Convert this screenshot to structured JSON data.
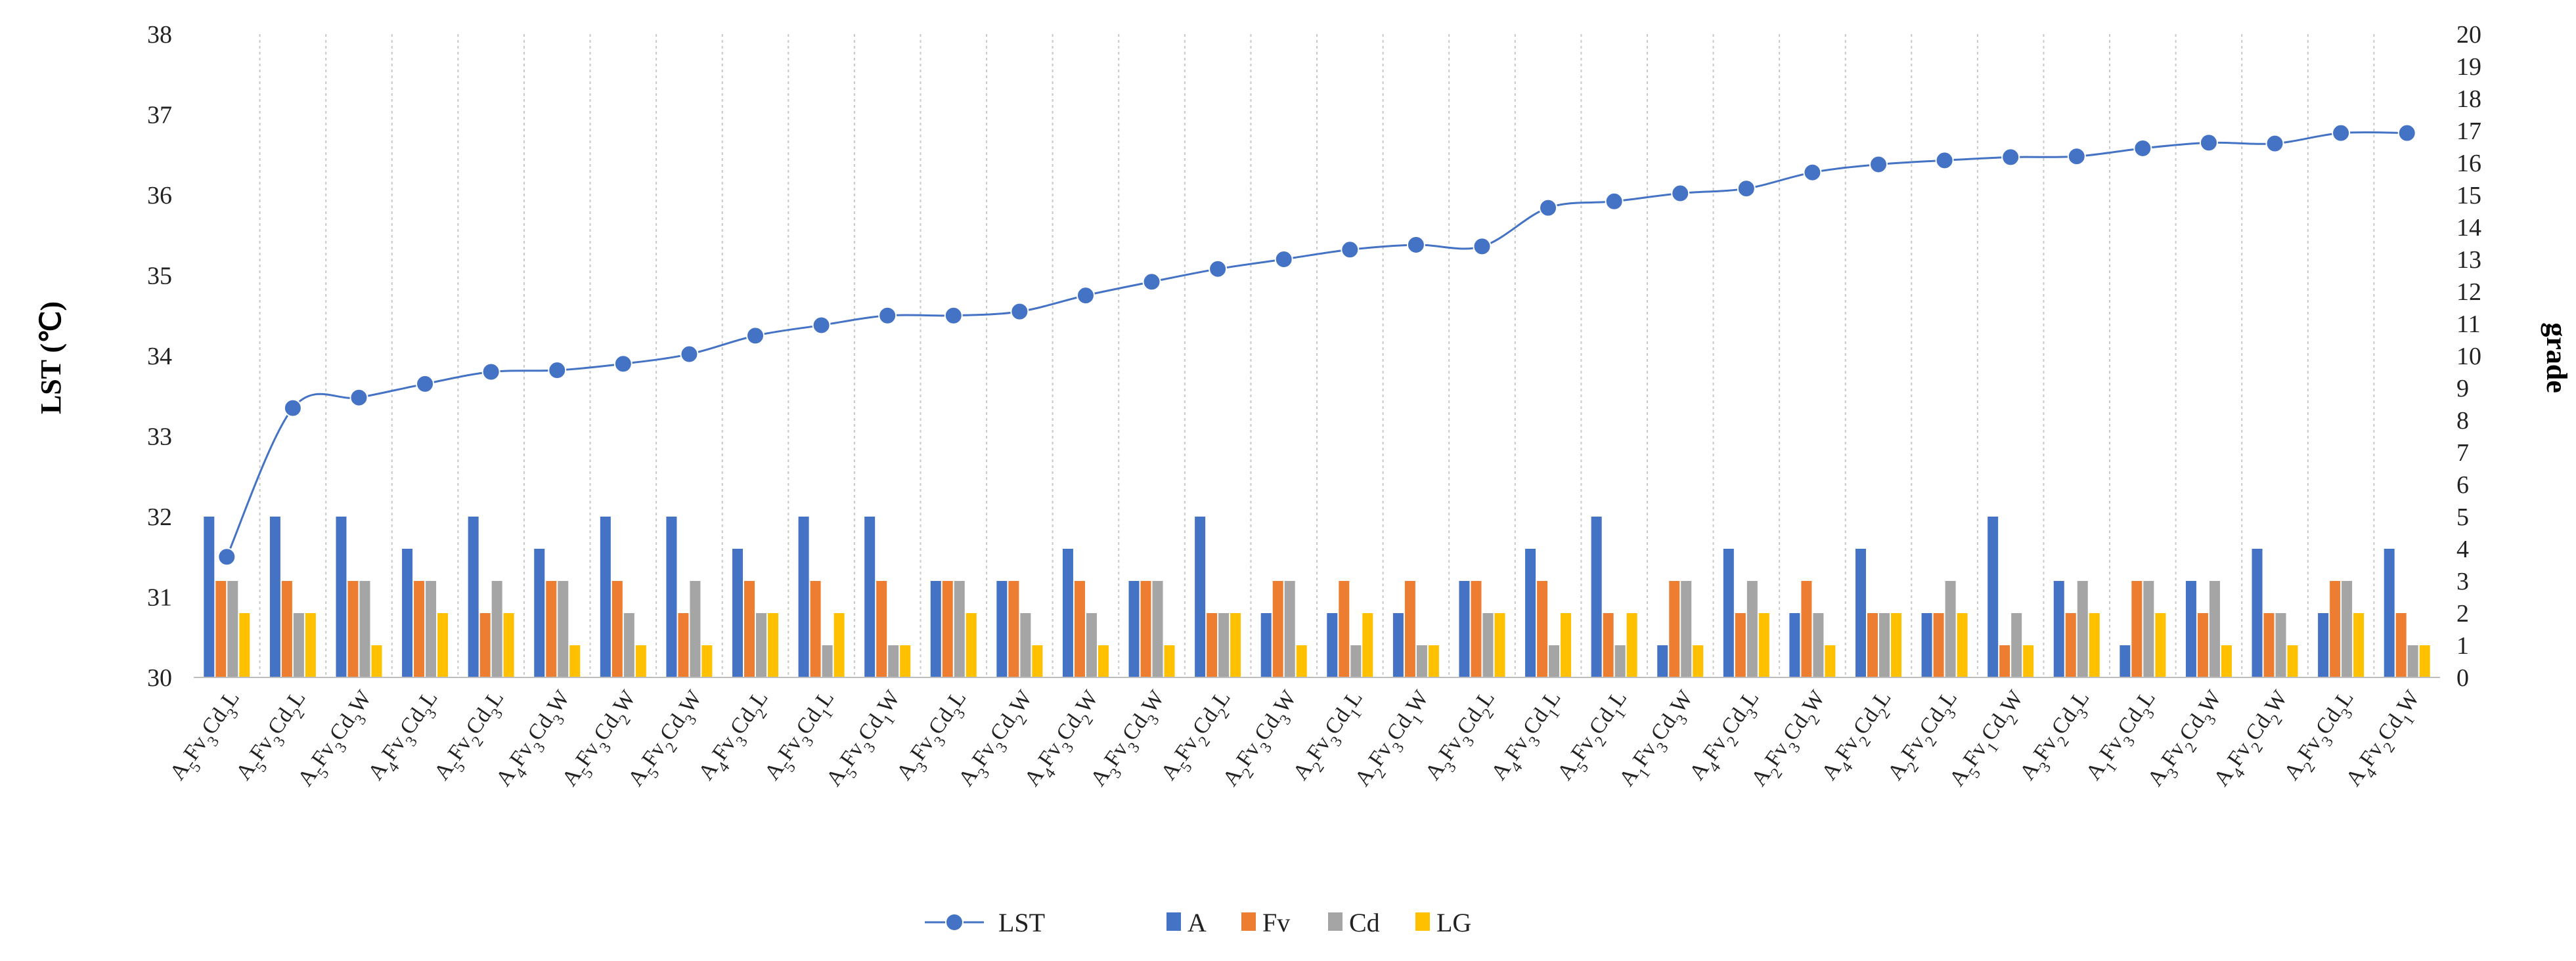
{
  "chart_data": {
    "type": "bar+line",
    "title": "",
    "ylabel_left": "LST (℃)",
    "ylabel_right": "grade",
    "ylim_left": [
      30,
      38
    ],
    "ylim_right": [
      0,
      20
    ],
    "yticks_left": [
      "30",
      "31",
      "32",
      "33",
      "34",
      "35",
      "36",
      "37",
      "38"
    ],
    "yticks_right": [
      "0",
      "1",
      "2",
      "3",
      "4",
      "5",
      "6",
      "7",
      "8",
      "9",
      "10",
      "11",
      "12",
      "13",
      "14",
      "15",
      "16",
      "17",
      "18",
      "19",
      "20"
    ],
    "categories": [
      "A5Fv3Cd3L",
      "A5Fv3Cd2L",
      "A5Fv3Cd3W",
      "A4Fv3Cd3L",
      "A5Fv2Cd3L",
      "A4Fv3Cd3W",
      "A5Fv3Cd2W",
      "A5Fv2Cd3W",
      "A4Fv3Cd2L",
      "A5Fv3Cd1L",
      "A5Fv3Cd1W",
      "A3Fv3Cd3L",
      "A3Fv3Cd2W",
      "A4Fv3Cd2W",
      "A3Fv3Cd3W",
      "A5Fv2Cd2L",
      "A2Fv3Cd3W",
      "A2Fv3Cd1L",
      "A2Fv3Cd1W",
      "A3Fv3Cd2L",
      "A4Fv3Cd1L",
      "A5Fv2Cd1L",
      "A1Fv3Cd3W",
      "A4Fv2Cd3L",
      "A2Fv3Cd2W",
      "A4Fv2Cd2L",
      "A2Fv2Cd3L",
      "A5Fv1Cd2W",
      "A3Fv2Cd3L",
      "A1Fv3Cd3L",
      "A3Fv2Cd3W",
      "A4Fv2Cd2W",
      "A2Fv3Cd3L",
      "A4Fv2Cd1W"
    ],
    "line_series": {
      "name": "LST",
      "axis": "left",
      "color": "#4472c4",
      "values": [
        31.5,
        33.35,
        33.48,
        33.65,
        33.8,
        33.82,
        33.9,
        34.02,
        34.25,
        34.38,
        34.5,
        34.5,
        34.55,
        34.75,
        34.92,
        35.08,
        35.2,
        35.32,
        35.38,
        35.36,
        35.84,
        35.92,
        36.02,
        36.08,
        36.28,
        36.38,
        36.43,
        36.47,
        36.48,
        36.58,
        36.65,
        36.64,
        36.77,
        36.77
      ]
    },
    "bar_series": [
      {
        "name": "A",
        "axis": "right",
        "color": "#4472c4",
        "values": [
          5,
          5,
          5,
          4,
          5,
          4,
          5,
          5,
          4,
          5,
          5,
          3,
          3,
          4,
          3,
          5,
          2,
          2,
          2,
          3,
          4,
          5,
          1,
          4,
          2,
          4,
          2,
          5,
          3,
          1,
          3,
          4,
          2,
          4
        ]
      },
      {
        "name": "Fv",
        "axis": "right",
        "color": "#ed7d31",
        "values": [
          3,
          3,
          3,
          3,
          2,
          3,
          3,
          2,
          3,
          3,
          3,
          3,
          3,
          3,
          3,
          2,
          3,
          3,
          3,
          3,
          3,
          2,
          3,
          2,
          3,
          2,
          2,
          1,
          2,
          3,
          2,
          2,
          3,
          2
        ]
      },
      {
        "name": "Cd",
        "axis": "right",
        "color": "#a5a5a5",
        "values": [
          3,
          2,
          3,
          3,
          3,
          3,
          2,
          3,
          2,
          1,
          1,
          3,
          2,
          2,
          3,
          2,
          3,
          1,
          1,
          2,
          1,
          1,
          3,
          3,
          2,
          2,
          3,
          2,
          3,
          3,
          3,
          2,
          3,
          1
        ]
      },
      {
        "name": "LG",
        "axis": "right",
        "color": "#ffc000",
        "values": [
          2,
          2,
          1,
          2,
          2,
          1,
          1,
          1,
          2,
          2,
          1,
          2,
          1,
          1,
          1,
          2,
          1,
          2,
          1,
          2,
          2,
          2,
          1,
          2,
          1,
          2,
          2,
          1,
          2,
          2,
          1,
          1,
          2,
          1
        ]
      }
    ],
    "legend": {
      "position": "bottom-center",
      "entries": [
        "LST",
        "A",
        "Fv",
        "Cd",
        "LG"
      ]
    },
    "grid": {
      "vertical_dashed": true,
      "horizontal": false
    }
  }
}
